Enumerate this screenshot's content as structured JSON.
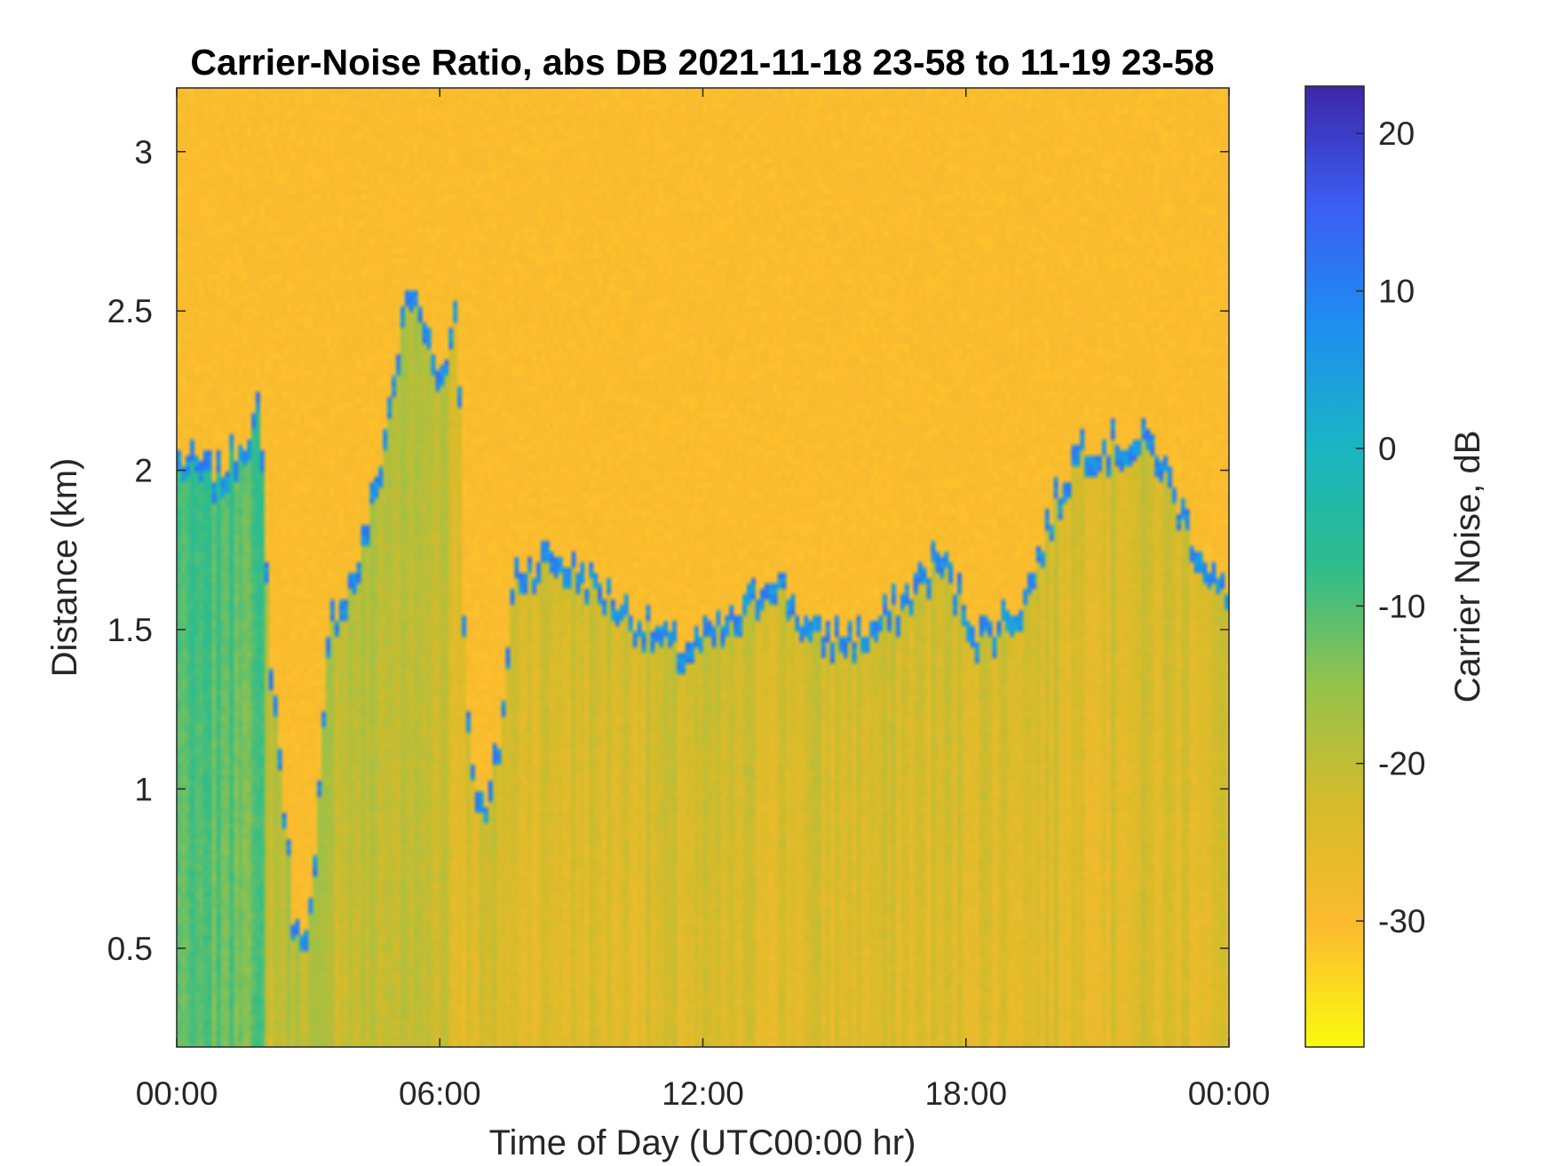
{
  "chart_data": {
    "type": "heatmap",
    "title": "Carrier-Noise Ratio, abs DB 2021-11-18 23-58 to 11-19 23-58",
    "xlabel": "Time of Day (UTC00:00 hr)",
    "ylabel": "Distance (km)",
    "colorbar_label": "Carrier Noise, dB",
    "x_tick_labels": [
      "00:00",
      "06:00",
      "12:00",
      "18:00",
      "00:00"
    ],
    "x_tick_hours": [
      0,
      6,
      12,
      18,
      24
    ],
    "xlim_hours": [
      0,
      24
    ],
    "y_ticks": [
      0.5,
      1,
      1.5,
      2,
      2.5,
      3
    ],
    "y_tick_labels": [
      "0.5",
      "1",
      "1.5",
      "2",
      "2.5",
      "3"
    ],
    "ylim": [
      0.19,
      3.2
    ],
    "colorbar_ticks": [
      20,
      10,
      0,
      -10,
      -20,
      -30
    ],
    "colorbar_tick_labels": [
      "20",
      "10",
      "0",
      "-10",
      "-20",
      "-30"
    ],
    "clim": [
      -38,
      23
    ],
    "colormap": [
      "#f9fb0e",
      "#fdbb2f",
      "#d6bb2a",
      "#96c24b",
      "#2ebd8b",
      "#1ab5c3",
      "#1e8ff0",
      "#3b5ef4",
      "#3e26a8"
    ],
    "grid": false,
    "background_level_db": -30,
    "boundary_layer_top_km": [
      {
        "hour": 0.0,
        "km": 2.05
      },
      {
        "hour": 1.0,
        "km": 2.0
      },
      {
        "hour": 1.9,
        "km": 2.2
      },
      {
        "hour": 2.1,
        "km": 1.5
      },
      {
        "hour": 2.4,
        "km": 1.05
      },
      {
        "hour": 2.7,
        "km": 0.55
      },
      {
        "hour": 3.1,
        "km": 0.65
      },
      {
        "hour": 3.5,
        "km": 1.55
      },
      {
        "hour": 4.1,
        "km": 1.7
      },
      {
        "hour": 4.6,
        "km": 2.0
      },
      {
        "hour": 5.3,
        "km": 2.6
      },
      {
        "hour": 6.1,
        "km": 2.3
      },
      {
        "hour": 6.4,
        "km": 2.6
      },
      {
        "hour": 6.6,
        "km": 1.25
      },
      {
        "hour": 7.0,
        "km": 0.9
      },
      {
        "hour": 7.4,
        "km": 1.2
      },
      {
        "hour": 7.7,
        "km": 1.7
      },
      {
        "hour": 8.5,
        "km": 1.75
      },
      {
        "hour": 9.2,
        "km": 1.7
      },
      {
        "hour": 10.5,
        "km": 1.55
      },
      {
        "hour": 11.5,
        "km": 1.45
      },
      {
        "hour": 12.8,
        "km": 1.55
      },
      {
        "hour": 13.6,
        "km": 1.7
      },
      {
        "hour": 14.5,
        "km": 1.5
      },
      {
        "hour": 15.7,
        "km": 1.5
      },
      {
        "hour": 16.5,
        "km": 1.6
      },
      {
        "hour": 17.4,
        "km": 1.75
      },
      {
        "hour": 18.3,
        "km": 1.5
      },
      {
        "hour": 19.3,
        "km": 1.6
      },
      {
        "hour": 20.0,
        "km": 1.9
      },
      {
        "hour": 20.6,
        "km": 2.1
      },
      {
        "hour": 21.5,
        "km": 2.1
      },
      {
        "hour": 22.3,
        "km": 2.1
      },
      {
        "hour": 23.2,
        "km": 1.8
      },
      {
        "hour": 24.0,
        "km": 1.6
      }
    ]
  }
}
